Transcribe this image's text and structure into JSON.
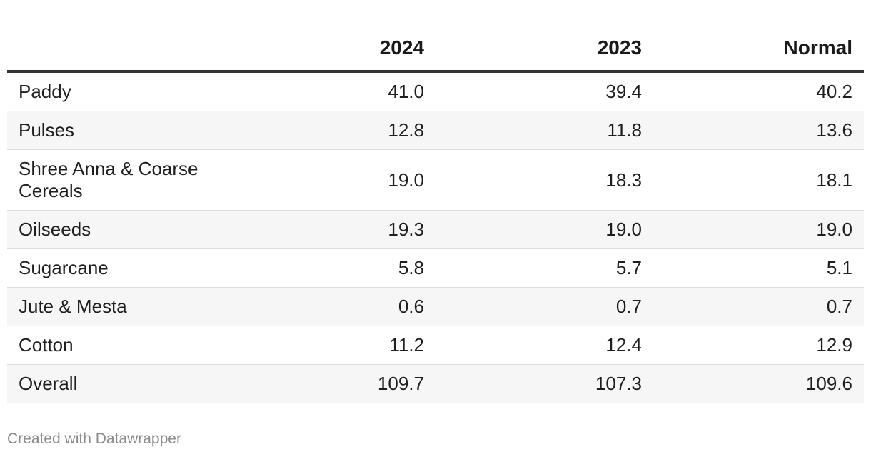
{
  "chart_data": {
    "type": "table",
    "columns": [
      "",
      "2024",
      "2023",
      "Normal"
    ],
    "rows": [
      {
        "label": "Paddy",
        "values": [
          "41.0",
          "39.4",
          "40.2"
        ]
      },
      {
        "label": "Pulses",
        "values": [
          "12.8",
          "11.8",
          "13.6"
        ]
      },
      {
        "label": "Shree Anna & Coarse Cereals",
        "values": [
          "19.0",
          "18.3",
          "18.1"
        ]
      },
      {
        "label": "Oilseeds",
        "values": [
          "19.3",
          "19.0",
          "19.0"
        ]
      },
      {
        "label": "Sugarcane",
        "values": [
          "5.8",
          "5.7",
          "5.1"
        ]
      },
      {
        "label": "Jute & Mesta",
        "values": [
          "0.6",
          "0.7",
          "0.7"
        ]
      },
      {
        "label": "Cotton",
        "values": [
          "11.2",
          "12.4",
          "12.9"
        ]
      },
      {
        "label": "Overall",
        "values": [
          "109.7",
          "107.3",
          "109.6"
        ]
      }
    ]
  },
  "footer": {
    "credit": "Created with Datawrapper"
  }
}
